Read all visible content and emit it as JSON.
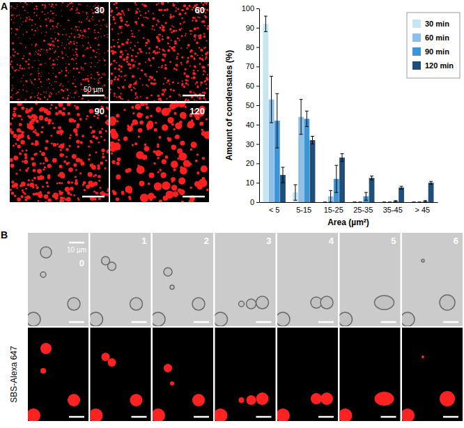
{
  "chart_data": {
    "type": "bar",
    "x_label": "Area (µm²)",
    "y_label": "Amount of condensates (%)",
    "categories": [
      "< 5",
      "5-15",
      "15-25",
      "25-35",
      "35-45",
      "> 45"
    ],
    "series": [
      {
        "name": "30 min",
        "color": "#c6e7f1",
        "values": [
          92,
          5,
          0,
          0,
          0,
          0
        ],
        "errors": [
          4,
          4,
          0,
          0,
          0,
          0
        ]
      },
      {
        "name": "60 min",
        "color": "#8ebfe6",
        "values": [
          53,
          44,
          3,
          0,
          0,
          0
        ],
        "errors": [
          12,
          9,
          3,
          0,
          0,
          0
        ]
      },
      {
        "name": "90 min",
        "color": "#3d95d6",
        "values": [
          42,
          43,
          12,
          3,
          0.5,
          0.5
        ],
        "errors": [
          14,
          4,
          7,
          2,
          0.3,
          0.3
        ]
      },
      {
        "name": "120 min",
        "color": "#1f4e79",
        "values": [
          14,
          32,
          23,
          12.5,
          7.5,
          10
        ],
        "errors": [
          4,
          2,
          2,
          1,
          0.7,
          0.7
        ]
      }
    ],
    "ylim": [
      0,
      100
    ],
    "yticks": [
      0,
      10,
      20,
      30,
      40,
      50,
      60,
      70,
      80,
      90,
      100
    ],
    "legend": "top-right",
    "grid": false
  },
  "panels": {
    "A": {
      "label": "A",
      "frames": [
        "30",
        "60",
        "90",
        "120"
      ],
      "scale_bar": "50 µm"
    },
    "B": {
      "label": "B",
      "frames": [
        "0",
        "1",
        "2",
        "3",
        "4",
        "5",
        "6"
      ],
      "scale_bar": "10 µm",
      "channel": "SBS-Alexa 647"
    }
  }
}
